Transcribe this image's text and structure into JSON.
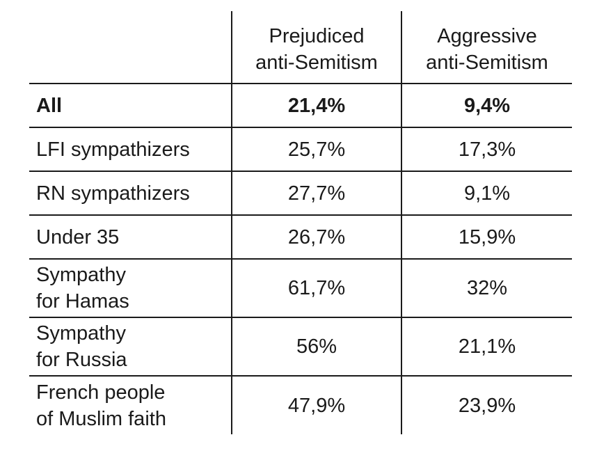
{
  "table": {
    "columns": {
      "prejudiced": [
        "Prejudiced",
        "anti-Semitism"
      ],
      "aggressive": [
        "Aggressive",
        "anti-Semitism"
      ]
    },
    "rows": [
      {
        "label": [
          "All"
        ],
        "prejudiced": "21,4%",
        "aggressive": "9,4%",
        "bold": true
      },
      {
        "label": [
          "LFI sympathizers"
        ],
        "prejudiced": "25,7%",
        "aggressive": "17,3%"
      },
      {
        "label": [
          "RN sympathizers"
        ],
        "prejudiced": "27,7%",
        "aggressive": "9,1%"
      },
      {
        "label": [
          "Under 35"
        ],
        "prejudiced": "26,7%",
        "aggressive": "15,9%"
      },
      {
        "label": [
          "Sympathy",
          "for Hamas"
        ],
        "prejudiced": "61,7%",
        "aggressive": "32%"
      },
      {
        "label": [
          "Sympathy",
          "for Russia"
        ],
        "prejudiced": "56%",
        "aggressive": "21,1%"
      },
      {
        "label": [
          "French people",
          "of Muslim faith"
        ],
        "prejudiced": "47,9%",
        "aggressive": "23,9%"
      }
    ]
  }
}
